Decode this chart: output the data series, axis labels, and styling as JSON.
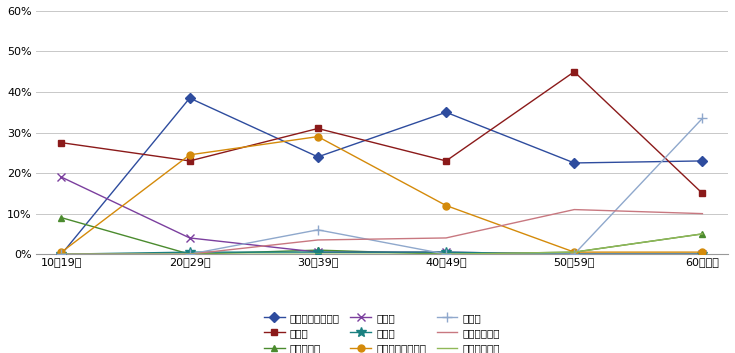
{
  "x_labels": [
    "10～19歳",
    "20～29歳",
    "30～39歳",
    "40～49歳",
    "50～59歳",
    "60歳以上"
  ],
  "series": [
    {
      "label": "就職・転職・転業",
      "color": "#2E4C9E",
      "marker": "D",
      "markersize": 5,
      "linestyle": "-",
      "values": [
        0.0,
        38.5,
        24.0,
        35.0,
        22.5,
        23.0
      ]
    },
    {
      "label": "転　勤",
      "color": "#8B1A1A",
      "marker": "s",
      "markersize": 5,
      "linestyle": "-",
      "values": [
        27.5,
        23.0,
        31.0,
        23.0,
        45.0,
        15.0
      ]
    },
    {
      "label": "退職・廃業",
      "color": "#4B8B2E",
      "marker": "^",
      "markersize": 5,
      "linestyle": "-",
      "values": [
        9.0,
        0.0,
        1.0,
        0.0,
        0.5,
        5.0
      ]
    },
    {
      "label": "就　学",
      "color": "#7B3F9E",
      "marker": "x",
      "markersize": 6,
      "linestyle": "-",
      "values": [
        19.0,
        4.0,
        0.5,
        0.5,
        0.0,
        0.0
      ]
    },
    {
      "label": "卒　業",
      "color": "#1A8080",
      "marker": "*",
      "markersize": 7,
      "linestyle": "-",
      "values": [
        0.0,
        0.5,
        0.5,
        0.5,
        0.0,
        0.0
      ]
    },
    {
      "label": "結婚・離婚・縁組",
      "color": "#D48A0A",
      "marker": "o",
      "markersize": 5,
      "linestyle": "-",
      "values": [
        0.5,
        24.5,
        29.0,
        12.0,
        0.5,
        0.5
      ]
    },
    {
      "label": "住　宅",
      "color": "#8FA8CC",
      "marker": "+",
      "markersize": 7,
      "linestyle": "-",
      "values": [
        0.0,
        0.0,
        6.0,
        0.0,
        0.0,
        33.5
      ]
    },
    {
      "label": "交通の利便性",
      "color": "#C87880",
      "marker": null,
      "markersize": 4,
      "linestyle": "-",
      "values": [
        0.0,
        0.0,
        3.5,
        4.0,
        11.0,
        10.0
      ]
    },
    {
      "label": "生活の利便性",
      "color": "#90B858",
      "marker": null,
      "markersize": 4,
      "linestyle": "-",
      "values": [
        0.0,
        0.0,
        0.0,
        0.0,
        0.5,
        5.0
      ]
    }
  ],
  "ylim": [
    0,
    60
  ],
  "yticks": [
    0,
    10,
    20,
    30,
    40,
    50,
    60
  ],
  "background_color": "#FFFFFF",
  "grid_color": "#C8C8C8",
  "legend_ncol": 3,
  "legend_fontsize": 7.5
}
